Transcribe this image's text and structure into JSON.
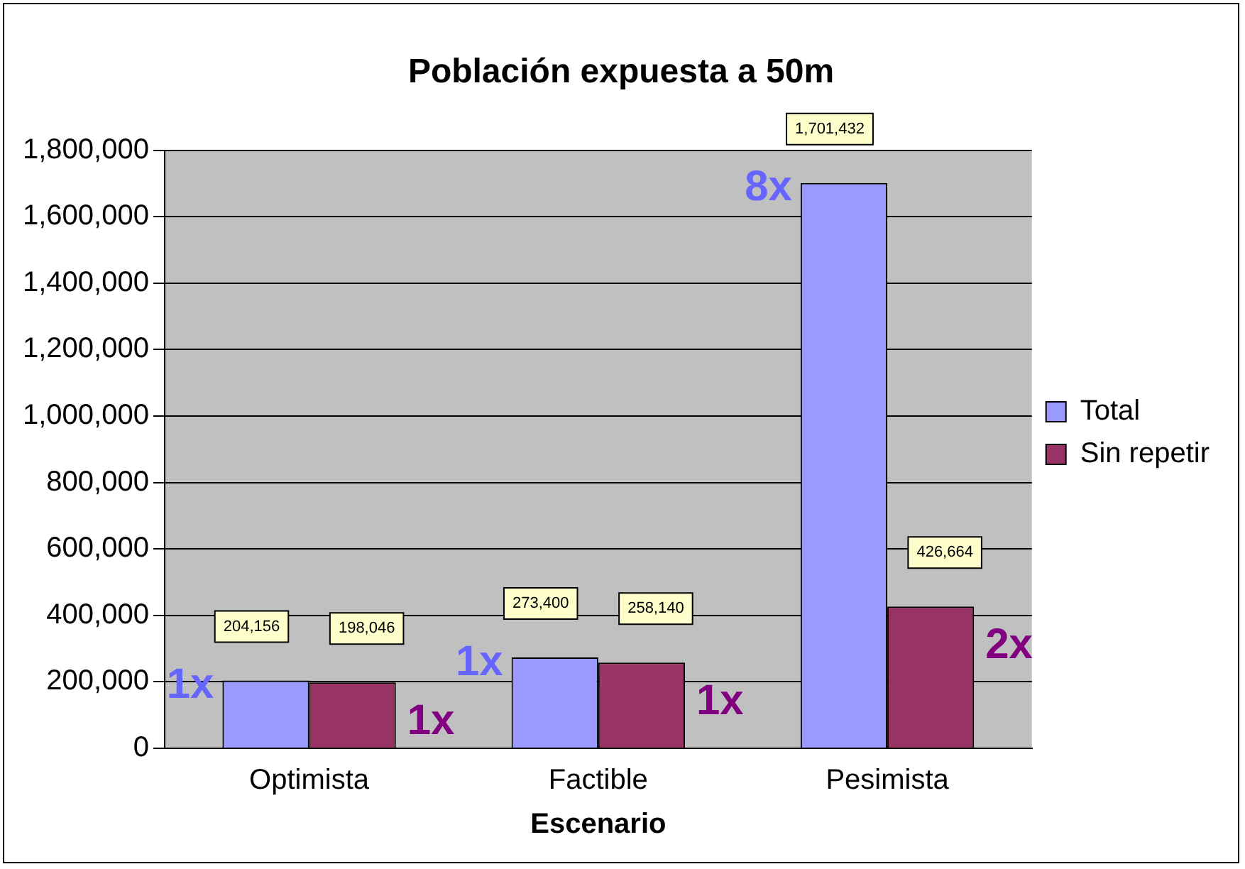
{
  "chart_data": {
    "type": "bar",
    "title": "Población expuesta a 50m",
    "xlabel": "Escenario",
    "categories": [
      "Optimista",
      "Factible",
      "Pesimista"
    ],
    "series": [
      {
        "name": "Total",
        "color": "#9999ff",
        "values": [
          204156,
          273400,
          1701432
        ],
        "value_labels": [
          "204,156",
          "273,400",
          "1,701,432"
        ]
      },
      {
        "name": "Sin repetir",
        "color": "#993366",
        "values": [
          198046,
          258140,
          426664
        ],
        "value_labels": [
          "198,046",
          "258,140",
          "426,664"
        ]
      }
    ],
    "ylim": [
      0,
      1800000
    ],
    "yticks": [
      {
        "value": 0,
        "label": "0"
      },
      {
        "value": 200000,
        "label": "200,000"
      },
      {
        "value": 400000,
        "label": "400,000"
      },
      {
        "value": 600000,
        "label": "600,000"
      },
      {
        "value": 800000,
        "label": "800,000"
      },
      {
        "value": 1000000,
        "label": "1,000,000"
      },
      {
        "value": 1200000,
        "label": "1,200,000"
      },
      {
        "value": 1400000,
        "label": "1,400,000"
      },
      {
        "value": 1600000,
        "label": "1,600,000"
      },
      {
        "value": 1800000,
        "label": "1,800,000"
      }
    ],
    "grid": "y",
    "legend": "right",
    "annotations": [
      "1x",
      "1x",
      "1x",
      "1x",
      "8x",
      "2x"
    ]
  }
}
